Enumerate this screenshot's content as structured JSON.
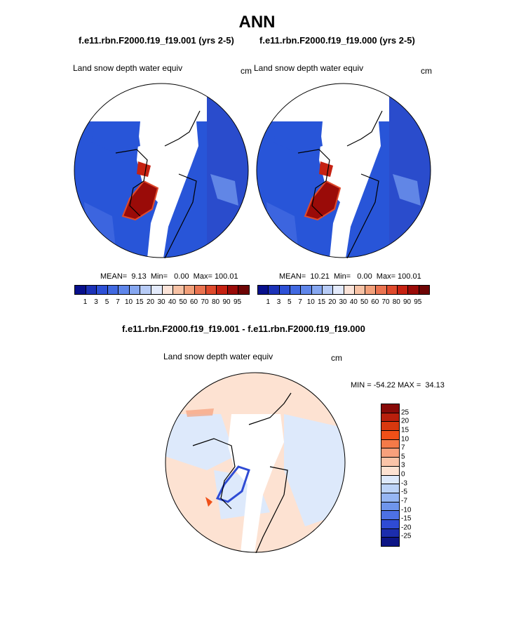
{
  "title": "ANN",
  "panels": [
    {
      "subtitle": "f.e11.rbn.F2000.f19_f19.001 (yrs 2-5)",
      "varname": "Land snow depth water equiv",
      "units": "cm",
      "stats": "MEAN=  9.13  Min=   0.00  Max= 100.01"
    },
    {
      "subtitle": "f.e11.rbn.F2000.f19_f19.000 (yrs 2-5)",
      "varname": "Land snow depth water equiv",
      "units": "cm",
      "stats": "MEAN=  10.21  Min=   0.00  Max= 100.01"
    }
  ],
  "diff_panel": {
    "subtitle": "f.e11.rbn.F2000.f19_f19.001 - f.e11.rbn.F2000.f19_f19.000",
    "varname": "Land snow depth water equiv",
    "units": "cm",
    "stats": "MIN = -54.22 MAX =  34.13"
  },
  "colorbar_top": {
    "labels": [
      "1",
      "3",
      "5",
      "7",
      "10",
      "15",
      "20",
      "30",
      "40",
      "50",
      "60",
      "70",
      "80",
      "90",
      "95"
    ],
    "colors": [
      "#08108c",
      "#1c32b8",
      "#2d50d6",
      "#4169e1",
      "#5f86ea",
      "#86a7f0",
      "#b7cbf6",
      "#e3eafb",
      "#fbe3d8",
      "#f7c2a5",
      "#f2a07a",
      "#ea7350",
      "#df4a2c",
      "#c62212",
      "#9a0b08",
      "#6e0505"
    ]
  },
  "colorbar_diff": {
    "labels": [
      "25",
      "20",
      "15",
      "10",
      "7",
      "5",
      "3",
      "0",
      "-3",
      "-5",
      "-7",
      "-10",
      "-15",
      "-20",
      "-25"
    ],
    "colors": [
      "#880a08",
      "#b81f0c",
      "#d8380e",
      "#f05018",
      "#f57a48",
      "#f8a07c",
      "#fbc4a8",
      "#fde2d2",
      "#dde9fb",
      "#bcd3f7",
      "#96b6f3",
      "#6f95ec",
      "#4d71e4",
      "#2f4bd4",
      "#1c2dad",
      "#0d1585"
    ]
  },
  "map_colors": {
    "ocean": "#ffffff",
    "snow_low": "#2855d8",
    "snow_mid": "#4169e1",
    "snow_light": "#6f95ec",
    "snow_deep": "#9a0b08",
    "snow_high": "#df4a2c",
    "diff_pos": "#fde2d2",
    "diff_neg": "#dde9fb",
    "diff_neg_strong": "#2f4bd4",
    "diff_pos_strong": "#f05018"
  }
}
